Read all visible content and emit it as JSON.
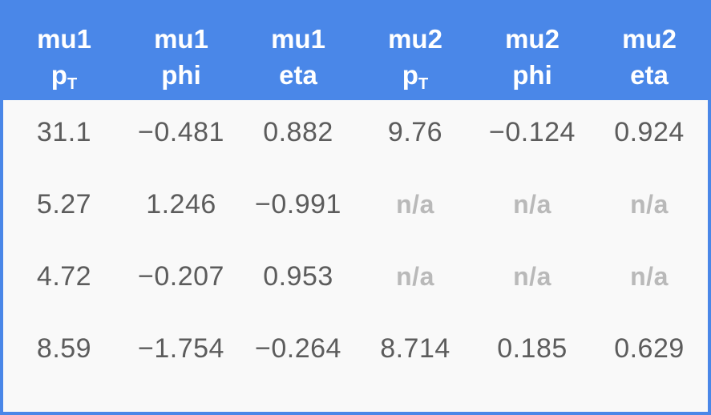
{
  "header": [
    {
      "line1": "mu1",
      "line2": "p",
      "sub": "T"
    },
    {
      "line1": "mu1",
      "line2": "phi",
      "sub": ""
    },
    {
      "line1": "mu1",
      "line2": "eta",
      "sub": ""
    },
    {
      "line1": "mu2",
      "line2": "p",
      "sub": "T"
    },
    {
      "line1": "mu2",
      "line2": "phi",
      "sub": ""
    },
    {
      "line1": "mu2",
      "line2": "eta",
      "sub": ""
    }
  ],
  "rows": [
    [
      "31.1",
      "−0.481",
      "0.882",
      "9.76",
      "−0.124",
      "0.924"
    ],
    [
      "5.27",
      "1.246",
      "−0.991",
      "n/a",
      "n/a",
      "n/a"
    ],
    [
      "4.72",
      "−0.207",
      "0.953",
      "n/a",
      "n/a",
      "n/a"
    ],
    [
      "8.59",
      "−1.754",
      "−0.264",
      "8.714",
      "0.185",
      "0.629"
    ]
  ],
  "na_text": "n/a",
  "colors": {
    "header_bg": "#4a87e8",
    "header_text": "#ffffff",
    "cell_text": "#5c5c5c",
    "na_text": "#b9b9b9",
    "body_bg": "#f9f9f9"
  }
}
